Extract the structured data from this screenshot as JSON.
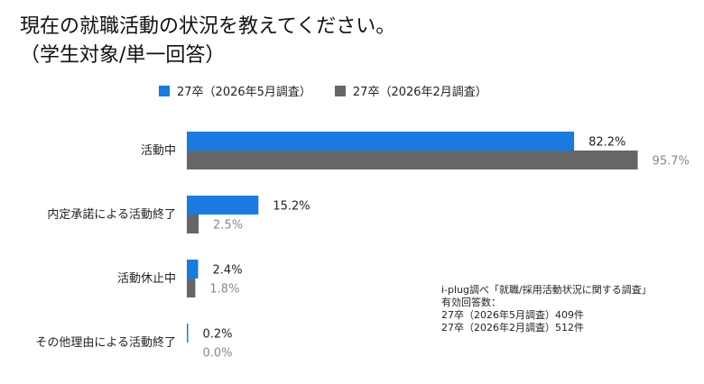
{
  "title": {
    "line1": "現在の就職活動の状況を教えてください。",
    "line2": "（学生対象/単一回答）"
  },
  "legend": [
    {
      "label": "27卒（2026年5月調査）",
      "color": "#1a7adf"
    },
    {
      "label": "27卒（2026年2月調査）",
      "color": "#666666"
    }
  ],
  "source": {
    "line1": "i-plug調べ「就職/採用活動状況に関する調査」",
    "line2": "有効回答数：",
    "line3": "27卒（2026年5月調査）409件",
    "line4": "27卒（2026年2月調査）512件"
  },
  "chart_data": {
    "type": "bar",
    "orientation": "horizontal",
    "categories": [
      "活動中",
      "内定承諾による活動終了",
      "活動休止中",
      "その他理由による活動終了"
    ],
    "series": [
      {
        "name": "27卒（2026年5月調査）",
        "color": "#1a7adf",
        "values": [
          82.2,
          15.2,
          2.4,
          0.2
        ],
        "labels": [
          "82.2%",
          "15.2%",
          "2.4%",
          "0.2%"
        ],
        "label_color": "#222222"
      },
      {
        "name": "27卒（2026年2月調査）",
        "color": "#666666",
        "values": [
          95.7,
          2.5,
          1.8,
          0.0
        ],
        "labels": [
          "95.7%",
          "2.5%",
          "1.8%",
          "0.0%"
        ],
        "label_color": "#888888"
      }
    ],
    "unit": "%",
    "xlim": [
      0,
      100
    ],
    "grid": false,
    "legend_position": "top"
  }
}
